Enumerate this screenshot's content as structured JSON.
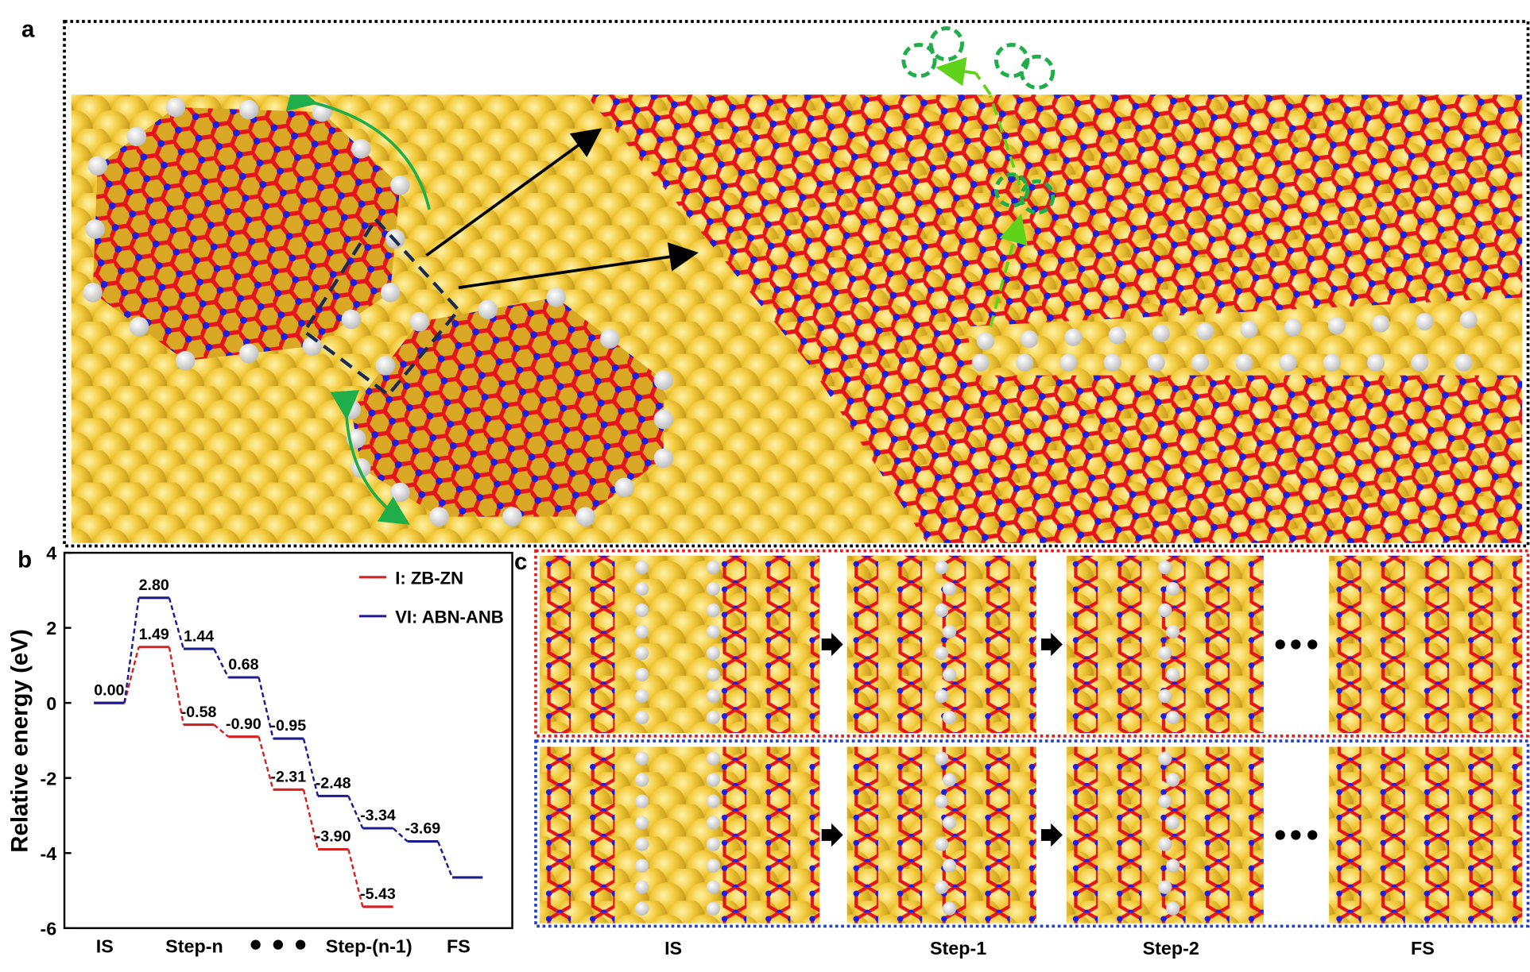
{
  "panel_labels": [
    "a",
    "b",
    "c"
  ],
  "chart_data": {
    "type": "energy-levels",
    "ylabel": "Relative energy (eV)",
    "x": [
      0,
      1,
      2,
      3,
      4,
      5,
      6,
      7,
      8
    ],
    "xlim": [
      -1,
      9
    ],
    "xticks": [
      {
        "value": -0.1,
        "label": "IS"
      },
      {
        "value": 1.9,
        "label": "Step-n"
      },
      {
        "value": 5.8,
        "label": "Step-(n-1)"
      },
      {
        "value": 7.8,
        "label": "FS"
      }
    ],
    "ylim": [
      -6,
      4
    ],
    "yticks": [
      -6,
      -4,
      -2,
      0,
      2,
      4
    ],
    "legend": "upper right",
    "series": [
      {
        "name": "I: ZB-ZN",
        "color": "#d42222",
        "values": [
          0,
          1.49,
          -0.58,
          -0.9,
          -2.31,
          -3.9,
          -5.43,
          null,
          null
        ],
        "value_labels": [
          null,
          "1.49",
          "-0.58",
          "-0.90",
          "-2.31",
          "-3.90",
          "-5.43",
          null,
          null
        ]
      },
      {
        "name": "VI: ABN-ANB",
        "color": "#1c1c8f",
        "values": [
          0,
          2.8,
          1.44,
          0.68,
          -0.95,
          -2.48,
          -3.34,
          -3.69,
          -4.65
        ],
        "value_labels": [
          "0.00",
          "2.80",
          "1.44",
          "0.68",
          "-0.95",
          "-2.48",
          "-3.34",
          "-3.69",
          null
        ]
      }
    ]
  },
  "panel_c": {
    "step_labels": [
      "IS",
      "Step-1",
      "Step-2",
      "FS"
    ]
  }
}
